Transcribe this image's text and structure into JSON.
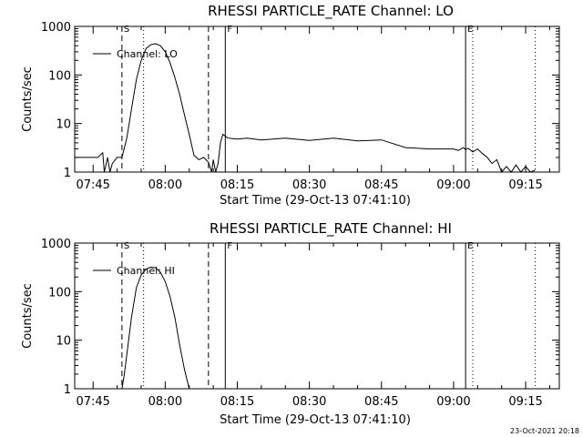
{
  "chart_data": [
    {
      "type": "line",
      "title": "RHESSI PARTICLE_RATE Channel: LO",
      "xlabel": "Start Time (29-Oct-13 07:41:10)",
      "ylabel": "Counts/sec",
      "yscale": "log",
      "ylim": [
        1,
        1000
      ],
      "ytick_labels": [
        "1",
        "10",
        "100",
        "1000"
      ],
      "xlim": [
        "07:41:10",
        "09:22:00"
      ],
      "xtick_labels": [
        "07:45",
        "08:00",
        "08:15",
        "08:30",
        "08:45",
        "09:00",
        "09:15"
      ],
      "legend": "Channel: LO",
      "legend_position": "top-left",
      "markers": [
        {
          "label": "S",
          "time": "07:51:00",
          "style": "dashed"
        },
        {
          "label": "",
          "time": "07:55:30",
          "style": "dotted"
        },
        {
          "label": "",
          "time": "08:09:00",
          "style": "dashed"
        },
        {
          "label": "F",
          "time": "08:12:30",
          "style": "solid"
        },
        {
          "label": "E",
          "time": "09:02:30",
          "style": "solid"
        },
        {
          "label": "",
          "time": "09:04:00",
          "style": "dotted"
        },
        {
          "label": "",
          "time": "09:17:00",
          "style": "dotted"
        }
      ],
      "series": [
        {
          "x": [
            "07:41:10",
            "07:45:00",
            "07:46:00",
            "07:47:00",
            "07:47:20",
            "07:48:00",
            "07:48:30",
            "07:49:00",
            "07:50:00",
            "07:51:00",
            "07:52:00",
            "07:53:00",
            "07:54:00",
            "07:55:00",
            "07:56:00",
            "07:57:00",
            "07:58:00",
            "07:59:00",
            "08:00:00",
            "08:01:00",
            "08:02:00",
            "08:03:00",
            "08:04:00",
            "08:05:00",
            "08:06:00",
            "08:07:00",
            "08:08:00",
            "08:09:00",
            "08:09:40",
            "08:10:00",
            "08:10:30",
            "08:11:00",
            "08:11:30",
            "08:12:00",
            "08:13:00",
            "08:15:00",
            "08:17:00",
            "08:20:00",
            "08:25:00",
            "08:30:00",
            "08:35:00",
            "08:40:00",
            "08:45:00",
            "08:50:00",
            "08:55:00",
            "09:00:00",
            "09:01:00",
            "09:02:00",
            "09:02:30",
            "09:03:00",
            "09:04:00",
            "09:05:00",
            "09:06:00",
            "09:07:00",
            "09:08:00",
            "09:09:00",
            "09:10:00",
            "09:11:00",
            "09:12:00",
            "09:13:00",
            "09:14:00",
            "09:15:00",
            "09:16:00",
            "09:17:00"
          ],
          "y": [
            2,
            2,
            2,
            2.5,
            1,
            2,
            1,
            1.5,
            2,
            2,
            5,
            20,
            80,
            200,
            350,
            420,
            440,
            400,
            300,
            180,
            90,
            40,
            15,
            6,
            2.2,
            1.8,
            2,
            1.6,
            1,
            1.8,
            1,
            1.5,
            4,
            6,
            5,
            4.8,
            5,
            4.6,
            5,
            4.5,
            5,
            4.4,
            4.6,
            3.2,
            3,
            3,
            2.8,
            3.2,
            2.9,
            3.1,
            2.6,
            3,
            2.4,
            2,
            1.5,
            1.8,
            1,
            1.3,
            1,
            1.4,
            1,
            1.3,
            1,
            1.1
          ]
        }
      ]
    },
    {
      "type": "line",
      "title": "RHESSI PARTICLE_RATE Channel: HI",
      "xlabel": "Start Time (29-Oct-13 07:41:10)",
      "ylabel": "Counts/sec",
      "yscale": "log",
      "ylim": [
        1,
        1000
      ],
      "ytick_labels": [
        "1",
        "10",
        "100",
        "1000"
      ],
      "xlim": [
        "07:41:10",
        "09:22:00"
      ],
      "xtick_labels": [
        "07:45",
        "08:00",
        "08:15",
        "08:30",
        "08:45",
        "09:00",
        "09:15"
      ],
      "legend": "Channel: HI",
      "legend_position": "top-left",
      "markers": [
        {
          "label": "S",
          "time": "07:51:00",
          "style": "dashed"
        },
        {
          "label": "",
          "time": "07:55:30",
          "style": "dotted"
        },
        {
          "label": "",
          "time": "08:09:00",
          "style": "dashed"
        },
        {
          "label": "F",
          "time": "08:12:30",
          "style": "solid"
        },
        {
          "label": "E",
          "time": "09:02:30",
          "style": "solid"
        },
        {
          "label": "",
          "time": "09:04:00",
          "style": "dotted"
        },
        {
          "label": "",
          "time": "09:17:00",
          "style": "dotted"
        }
      ],
      "series": [
        {
          "x": [
            "07:51:00",
            "07:51:30",
            "07:52:00",
            "07:53:00",
            "07:54:00",
            "07:55:00",
            "07:56:00",
            "07:57:00",
            "07:58:00",
            "07:59:00",
            "08:00:00",
            "08:01:00",
            "08:02:00",
            "08:03:00",
            "08:04:00",
            "08:05:00"
          ],
          "y": [
            1,
            2,
            5,
            30,
            120,
            220,
            290,
            320,
            310,
            250,
            160,
            80,
            30,
            8,
            2.5,
            1
          ]
        }
      ]
    }
  ],
  "footer": {
    "stamp": "23-Oct-2021 20:18"
  }
}
